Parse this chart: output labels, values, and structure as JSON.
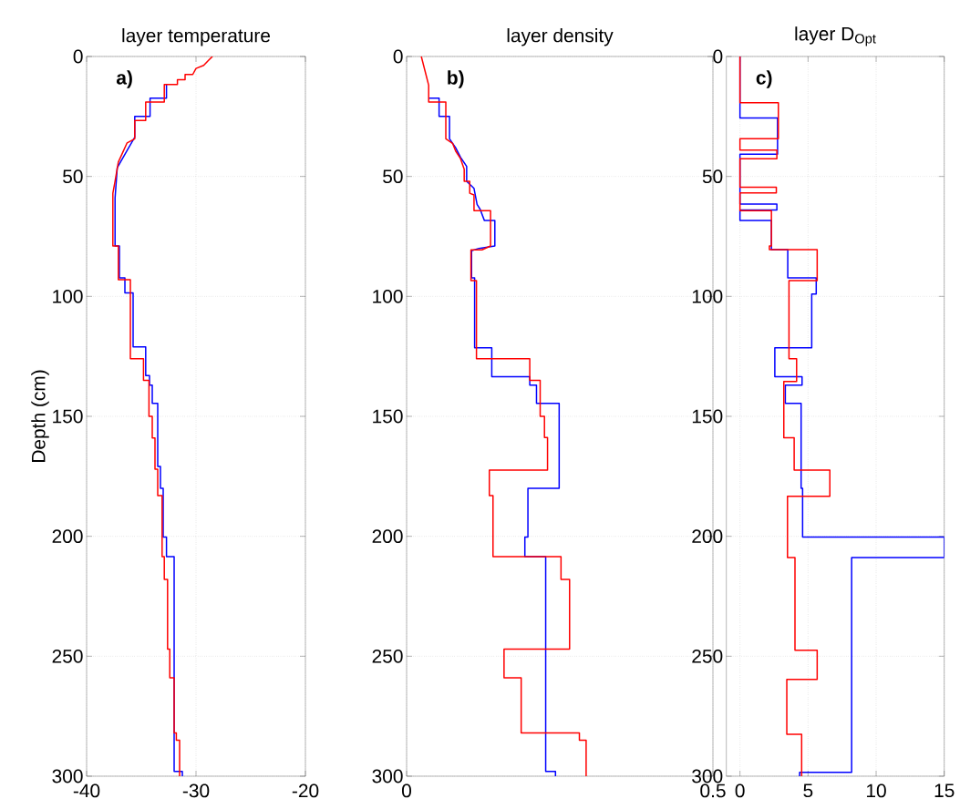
{
  "chart_data": [
    {
      "type": "line",
      "title": "layer temperature",
      "ylabel": "Depth (cm)",
      "annotations": [
        "a)"
      ],
      "xlim": [
        -40,
        -20
      ],
      "xticks": [
        -40,
        -30,
        -20
      ],
      "ylim": [
        300,
        0
      ],
      "yticks": [
        0,
        50,
        100,
        150,
        200,
        250,
        300
      ],
      "grid": true,
      "series": [
        {
          "color": "#0000ff",
          "x": [
            -32.7,
            -32.7,
            -34.2,
            -34.2,
            -35.6,
            -35.6,
            -36.25,
            -37.2,
            -37.4,
            -37.4,
            -37.0,
            -37.0,
            -36.5,
            -36.5,
            -35.75,
            -35.75,
            -34.6,
            -34.6,
            -34.25,
            -34.25,
            -34.0,
            -34.0,
            -33.5,
            -33.5,
            -33.25,
            -33.25,
            -33.0,
            -33.0,
            -32.7,
            -32.7,
            -32.0,
            -32.0,
            -31.25,
            -31.25
          ],
          "values": [
            11.7,
            17.4,
            17.4,
            25,
            25,
            33.7,
            38.8,
            46.4,
            59,
            79,
            79,
            92.3,
            92.3,
            98.5,
            98.5,
            121,
            121,
            133,
            133,
            137,
            137,
            144.6,
            144.6,
            170.9,
            170.9,
            180,
            180,
            200.3,
            200.3,
            208.5,
            208.5,
            298,
            298,
            300
          ]
        },
        {
          "color": "#ff0000",
          "x": [
            -28.5,
            -28.9,
            -29.3,
            -30,
            -30.3,
            -31,
            -31,
            -31.7,
            -31.7,
            -32.9,
            -32.9,
            -34.6,
            -34.6,
            -35.6,
            -35.6,
            -36.3,
            -36.7,
            -37.1,
            -37.4,
            -37.6,
            -37.6,
            -37.1,
            -37.1,
            -36,
            -36,
            -34.8,
            -34.8,
            -34.3,
            -34.3,
            -34.0,
            -34.0,
            -33.75,
            -33.75,
            -33.5,
            -33.5,
            -33.1,
            -33.1,
            -32.9,
            -32.9,
            -32.6,
            -32.6,
            -32.4,
            -32.4,
            -32.0,
            -32.0,
            -31.8,
            -31.8,
            -31.5,
            -31.5
          ],
          "values": [
            0,
            1.8,
            3.7,
            5,
            7.5,
            7.5,
            9.7,
            9.7,
            11.7,
            11.7,
            19,
            19,
            26.7,
            26.7,
            34.3,
            36,
            40,
            44,
            52,
            57,
            79,
            79,
            93,
            93,
            126,
            126,
            135,
            135,
            150,
            150,
            159,
            159,
            172,
            172,
            183,
            183,
            208.5,
            208.5,
            218,
            218,
            247,
            247,
            259,
            259,
            282,
            282,
            285,
            285,
            300
          ]
        }
      ]
    },
    {
      "type": "line",
      "title": "layer density",
      "annotations": [
        "b)"
      ],
      "xlim": [
        0,
        0.5
      ],
      "xticks": [
        0,
        0.5
      ],
      "ylim": [
        300,
        0
      ],
      "yticks": [
        0,
        50,
        100,
        150,
        200,
        250,
        300
      ],
      "grid": true,
      "series": [
        {
          "color": "#0000ff",
          "x": [
            0.036,
            0.053,
            0.053,
            0.07,
            0.07,
            0.08,
            0.088,
            0.098,
            0.098,
            0.11,
            0.115,
            0.12,
            0.127,
            0.144,
            0.144,
            0.118,
            0.106,
            0.106,
            0.111,
            0.111,
            0.139,
            0.139,
            0.201,
            0.201,
            0.212,
            0.212,
            0.249,
            0.249,
            0.198,
            0.198,
            0.193,
            0.193,
            0.227,
            0.227,
            0.243,
            0.243
          ],
          "values": [
            17.4,
            17.4,
            25,
            25,
            34.3,
            38,
            42,
            45.8,
            52,
            55,
            61.7,
            63.7,
            68.4,
            68.4,
            79,
            80,
            81,
            92.3,
            92.3,
            121.4,
            121.4,
            133.5,
            133.5,
            137,
            137,
            144.6,
            144.6,
            180,
            180,
            200.3,
            200.3,
            208.5,
            208.5,
            298,
            298,
            300
          ]
        },
        {
          "color": "#ff0000",
          "x": [
            0.024,
            0.03,
            0.036,
            0.036,
            0.064,
            0.064,
            0.075,
            0.08,
            0.088,
            0.094,
            0.094,
            0.103,
            0.103,
            0.11,
            0.11,
            0.137,
            0.137,
            0.123,
            0.105,
            0.105,
            0.114,
            0.114,
            0.201,
            0.201,
            0.218,
            0.218,
            0.225,
            0.225,
            0.23,
            0.23,
            0.135,
            0.135,
            0.141,
            0.141,
            0.252,
            0.252,
            0.266,
            0.266,
            0.159,
            0.159,
            0.187,
            0.187,
            0.282,
            0.282,
            0.293,
            0.293
          ],
          "values": [
            0,
            6,
            12,
            19,
            19,
            34.3,
            36.2,
            39.4,
            42.6,
            47,
            52,
            52,
            57,
            57.7,
            64.3,
            64.3,
            79,
            80.6,
            80.6,
            93.4,
            93.4,
            126,
            126,
            135,
            135,
            150,
            150,
            158.8,
            158.8,
            172.4,
            172.4,
            183,
            183,
            208.5,
            208.5,
            218,
            218,
            247,
            247,
            259,
            259,
            282,
            282,
            285,
            285,
            300
          ]
        }
      ]
    },
    {
      "type": "line",
      "title": "layer D$_{Opt}$",
      "annotations": [
        "c)"
      ],
      "xlim": [
        -1,
        15
      ],
      "xticks": [
        0,
        5,
        10,
        15
      ],
      "ylim": [
        300,
        0
      ],
      "yticks": [
        0,
        50,
        100,
        150,
        200,
        250,
        300
      ],
      "grid": true,
      "series": [
        {
          "color": "#0000ff",
          "x": [
            0,
            0,
            2.76,
            2.76,
            0,
            0,
            2.71,
            2.71,
            0,
            0,
            2.31,
            2.31,
            3.51,
            3.51,
            5.6,
            5.6,
            5.27,
            5.27,
            2.56,
            2.56,
            4.56,
            4.56,
            3.33,
            3.33,
            4.49,
            4.49,
            4.6,
            4.6,
            15,
            15,
            8.2,
            8.2,
            4.38,
            4.38
          ],
          "values": [
            0,
            25.6,
            25.6,
            40.7,
            40.7,
            61.5,
            61.5,
            64,
            64,
            68.4,
            68.4,
            80.5,
            80.5,
            92.3,
            92.3,
            99,
            99,
            121.4,
            121.4,
            133.5,
            133.5,
            137,
            137,
            144.6,
            144.6,
            180,
            180,
            200.3,
            200.3,
            208.9,
            208.9,
            298.4,
            298.4,
            300
          ]
        },
        {
          "color": "#ff0000",
          "x": [
            0,
            0,
            2.82,
            2.82,
            0,
            0,
            2.71,
            2.71,
            0,
            0,
            2.67,
            2.67,
            0,
            0,
            2.31,
            2.31,
            2.16,
            2.16,
            5.67,
            5.67,
            3.6,
            3.6,
            4.16,
            4.16,
            3.22,
            3.22,
            3.98,
            3.98,
            6.6,
            6.6,
            3.49,
            3.49,
            4.04,
            4.04,
            5.67,
            5.67,
            3.44,
            3.44,
            4.53,
            4.53
          ],
          "values": [
            0,
            19.3,
            19.3,
            34.3,
            34.3,
            39,
            39,
            42.6,
            42.6,
            54.5,
            54.5,
            56.9,
            56.9,
            64.3,
            64.3,
            79,
            79,
            80.5,
            80.5,
            93.4,
            93.4,
            126,
            126,
            135.5,
            135.5,
            158.9,
            158.9,
            172.4,
            172.4,
            183.3,
            183.3,
            208.9,
            208.9,
            247.5,
            247.5,
            259.7,
            259.7,
            282.5,
            282.5,
            300
          ]
        }
      ]
    }
  ]
}
